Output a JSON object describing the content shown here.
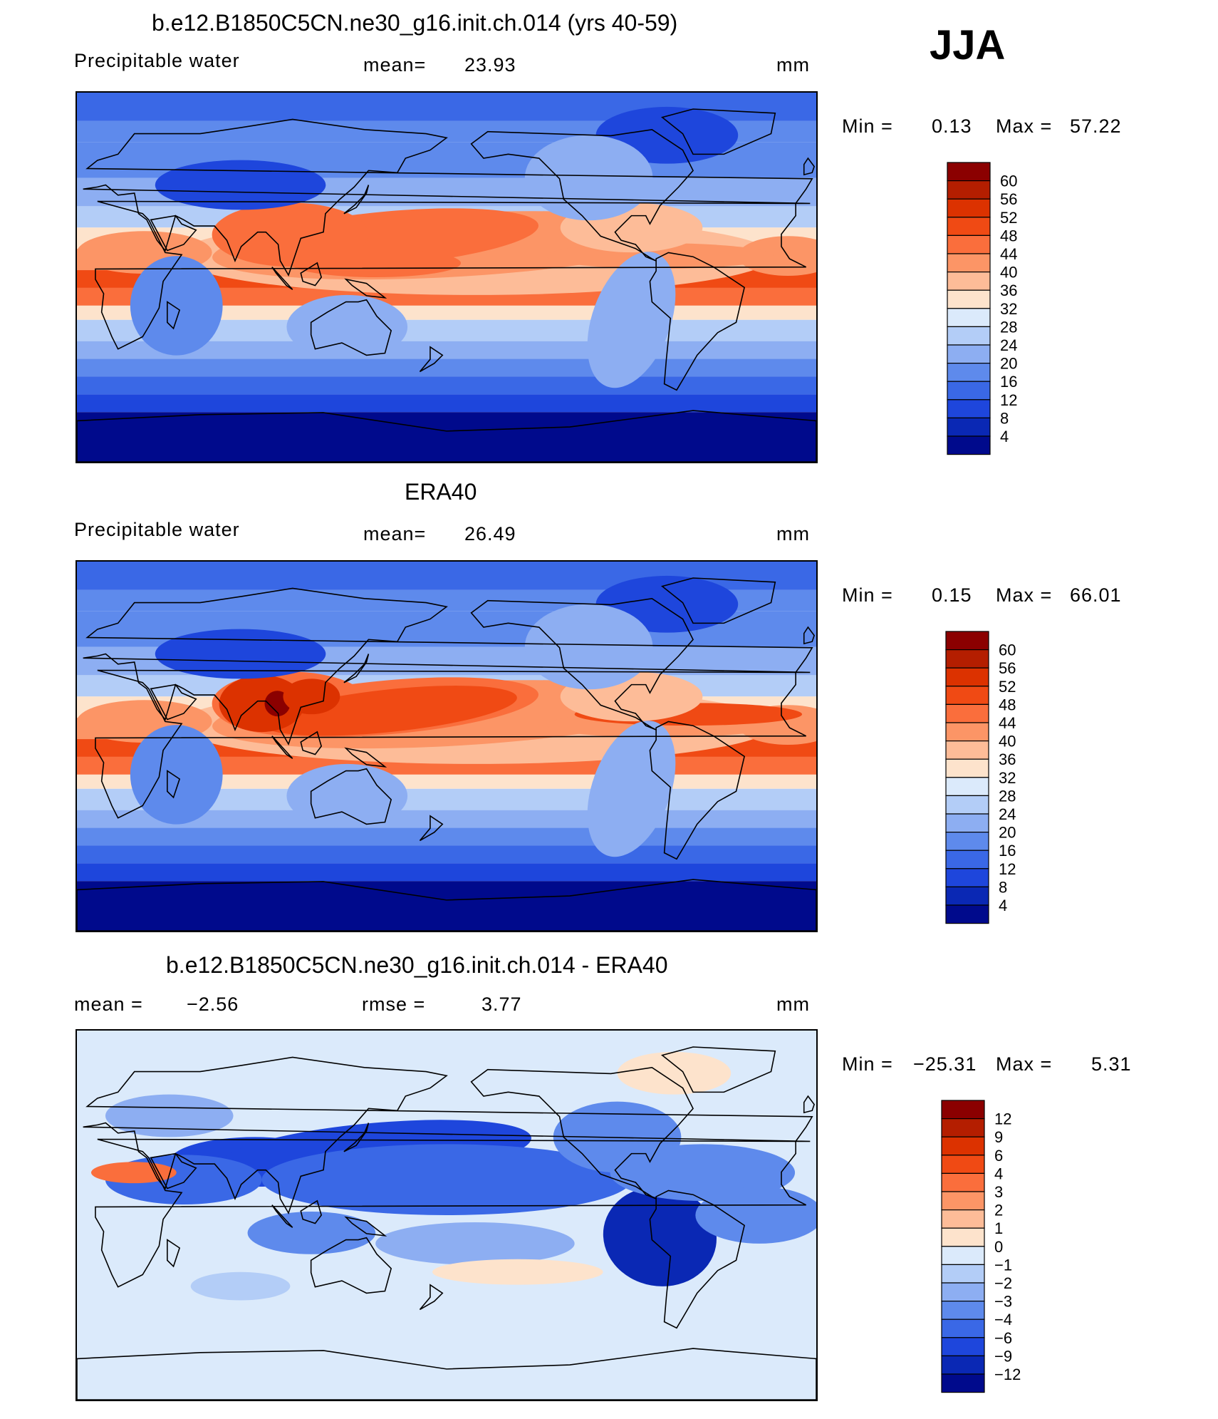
{
  "season": "JJA",
  "panels": [
    {
      "title": "b.e12.B1850C5CN.ne30_g16.init.ch.014 (yrs 40-59)",
      "variable": "Precipitable water",
      "stat1_label": "mean=",
      "stat1_value": "23.93",
      "stat2_label": "",
      "stat2_value": "",
      "units": "mm",
      "min_label": "Min =",
      "min_value": "0.13",
      "max_label": "Max =",
      "max_value": "57.22",
      "colorbar": {
        "labels": [
          "60",
          "56",
          "52",
          "48",
          "44",
          "40",
          "36",
          "32",
          "28",
          "24",
          "20",
          "16",
          "12",
          "8",
          "4"
        ],
        "colors": [
          "#8b0000",
          "#b41e00",
          "#dc3200",
          "#f04a14",
          "#fa6e3c",
          "#fc9566",
          "#fdbc98",
          "#fde3cc",
          "#dbeafb",
          "#b3cdf7",
          "#8daef2",
          "#5e8aec",
          "#3a68e6",
          "#1e46dc",
          "#0a28b4",
          "#000a8c"
        ]
      },
      "map_type": "model"
    },
    {
      "title": "ERA40",
      "variable": "Precipitable water",
      "stat1_label": "mean=",
      "stat1_value": "26.49",
      "stat2_label": "",
      "stat2_value": "",
      "units": "mm",
      "min_label": "Min =",
      "min_value": "0.15",
      "max_label": "Max =",
      "max_value": "66.01",
      "colorbar": {
        "labels": [
          "60",
          "56",
          "52",
          "48",
          "44",
          "40",
          "36",
          "32",
          "28",
          "24",
          "20",
          "16",
          "12",
          "8",
          "4"
        ],
        "colors": [
          "#8b0000",
          "#b41e00",
          "#dc3200",
          "#f04a14",
          "#fa6e3c",
          "#fc9566",
          "#fdbc98",
          "#fde3cc",
          "#dbeafb",
          "#b3cdf7",
          "#8daef2",
          "#5e8aec",
          "#3a68e6",
          "#1e46dc",
          "#0a28b4",
          "#000a8c"
        ]
      },
      "map_type": "obs"
    },
    {
      "title": "b.e12.B1850C5CN.ne30_g16.init.ch.014 - ERA40",
      "variable": "",
      "stat1_label": "mean =",
      "stat1_value": "−2.56",
      "stat2_label": "rmse =",
      "stat2_value": "3.77",
      "units": "mm",
      "min_label": "Min =",
      "min_value": "−25.31",
      "max_label": "Max =",
      "max_value": "5.31",
      "colorbar": {
        "labels": [
          "12",
          "9",
          "6",
          "4",
          "3",
          "2",
          "1",
          "0",
          "−1",
          "−2",
          "−3",
          "−4",
          "−6",
          "−9",
          "−12"
        ],
        "colors": [
          "#8b0000",
          "#b41e00",
          "#dc3200",
          "#f04a14",
          "#fa6e3c",
          "#fc9566",
          "#fdbc98",
          "#fde3cc",
          "#dbeafb",
          "#b3cdf7",
          "#8daef2",
          "#5e8aec",
          "#3a68e6",
          "#1e46dc",
          "#0a28b4",
          "#000a8c"
        ]
      },
      "map_type": "diff"
    }
  ]
}
